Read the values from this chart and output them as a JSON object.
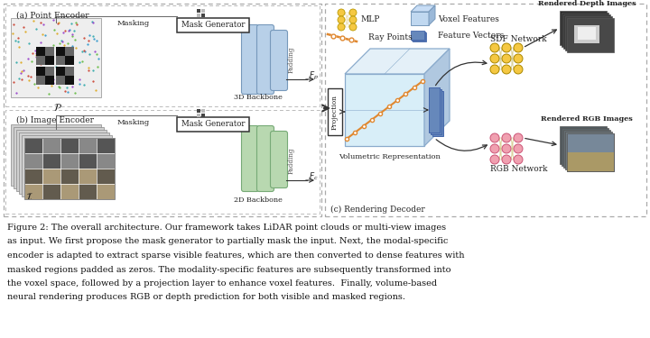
{
  "caption_lines": [
    "Figure 2: The overall architecture. Our framework takes LiDAR point clouds or multi-view images",
    "as input. We first propose the mask generator to partially mask the input. Next, the modal-specific",
    "encoder is adapted to extract sparse visible features, which are then converted to dense features with",
    "masked regions padded as zeros. The modality-specific features are subsequently transformed into",
    "the voxel space, followed by a projection layer to enhance voxel features.  Finally, volume-based",
    "neural rendering produces RGB or depth prediction for both visible and masked regions."
  ],
  "bg_color": "#ffffff",
  "dashed_color": "#999999",
  "blue_bar_color": "#b8d0e8",
  "green_bar_color": "#b8d8b0",
  "arrow_color": "#333333",
  "yellow_node_color": "#f5c842",
  "pink_node_color": "#f0a0b0",
  "orange_line_color": "#e08830",
  "vol_face_color": "#d8eef8",
  "vol_edge_color": "#8aabcc",
  "feat_vec_color": "#6688bb"
}
